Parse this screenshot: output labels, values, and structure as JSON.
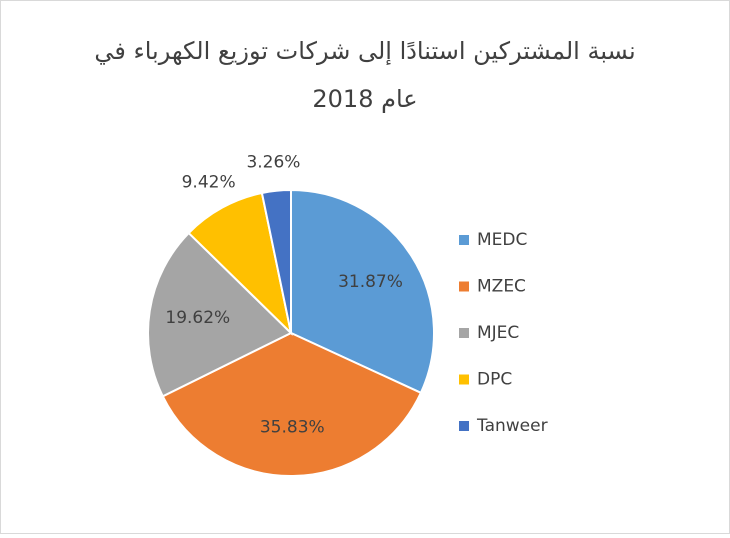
{
  "chart_data": {
    "type": "pie",
    "title": [
      "نسبة المشتركين استنادًا إلى شركات توزيع الكهرباء في",
      "عام 2018"
    ],
    "categories": [
      "MEDC",
      "MZEC",
      "MJEC",
      "DPC",
      "Tanweer"
    ],
    "values": [
      31.87,
      35.83,
      19.62,
      9.42,
      3.26
    ],
    "value_labels": [
      "31.87%",
      "35.83%",
      "19.62%",
      "9.42%",
      "3.26%"
    ],
    "colors": [
      "#5b9bd5",
      "#ed7d31",
      "#a5a5a5",
      "#ffc000",
      "#4472c4"
    ],
    "legend": "right"
  }
}
